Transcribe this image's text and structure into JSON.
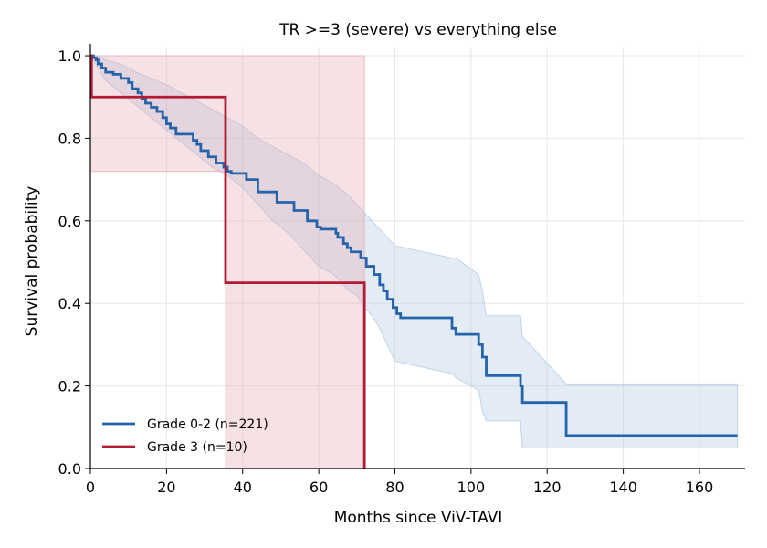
{
  "chart_data": {
    "type": "line",
    "subtype": "kaplan-meier",
    "title": "TR >=3 (severe) vs everything else",
    "xlabel": "Months since ViV-TAVI",
    "ylabel": "Survival probability",
    "xlim": [
      0,
      172
    ],
    "ylim": [
      0,
      1.02
    ],
    "xticks": [
      0,
      20,
      40,
      60,
      80,
      100,
      120,
      140,
      160
    ],
    "yticks": [
      0.0,
      0.2,
      0.4,
      0.6,
      0.8,
      1.0
    ],
    "xtick_labels": [
      "0",
      "20",
      "40",
      "60",
      "80",
      "100",
      "120",
      "140",
      "160"
    ],
    "ytick_labels": [
      "0.0",
      "0.2",
      "0.4",
      "0.6",
      "0.8",
      "1.0"
    ],
    "grid": true,
    "legend_position": "lower-left",
    "series": [
      {
        "name": "Grade 0-2 (n=221)",
        "color": "#2563ab",
        "band_color": "#aac4e2",
        "steps": [
          [
            0,
            1.0
          ],
          [
            0.8,
            0.995
          ],
          [
            1.5,
            0.99
          ],
          [
            2.0,
            0.98
          ],
          [
            3.0,
            0.97
          ],
          [
            4.0,
            0.96
          ],
          [
            6.0,
            0.955
          ],
          [
            8.0,
            0.945
          ],
          [
            10.0,
            0.935
          ],
          [
            11.0,
            0.92
          ],
          [
            12.5,
            0.91
          ],
          [
            13.5,
            0.895
          ],
          [
            14.5,
            0.885
          ],
          [
            16.0,
            0.875
          ],
          [
            17.5,
            0.865
          ],
          [
            19.0,
            0.85
          ],
          [
            20.0,
            0.835
          ],
          [
            21.0,
            0.825
          ],
          [
            22.5,
            0.81
          ],
          [
            27.0,
            0.795
          ],
          [
            28.0,
            0.785
          ],
          [
            29.0,
            0.77
          ],
          [
            31.0,
            0.755
          ],
          [
            33.0,
            0.74
          ],
          [
            35.0,
            0.73
          ],
          [
            36.0,
            0.72
          ],
          [
            37.0,
            0.715
          ],
          [
            41.0,
            0.7
          ],
          [
            44.0,
            0.67
          ],
          [
            49.0,
            0.645
          ],
          [
            53.5,
            0.625
          ],
          [
            57.0,
            0.6
          ],
          [
            59.5,
            0.585
          ],
          [
            60.5,
            0.58
          ],
          [
            64.5,
            0.57
          ],
          [
            65.0,
            0.56
          ],
          [
            66.5,
            0.545
          ],
          [
            67.5,
            0.535
          ],
          [
            68.5,
            0.525
          ],
          [
            71.0,
            0.51
          ],
          [
            72.5,
            0.49
          ],
          [
            74.5,
            0.47
          ],
          [
            76.0,
            0.445
          ],
          [
            77.0,
            0.43
          ],
          [
            78.0,
            0.41
          ],
          [
            79.5,
            0.39
          ],
          [
            80.5,
            0.375
          ],
          [
            81.5,
            0.365
          ],
          [
            95.0,
            0.34
          ],
          [
            96.0,
            0.325
          ],
          [
            102.0,
            0.3
          ],
          [
            103.0,
            0.27
          ],
          [
            104.0,
            0.225
          ],
          [
            113.0,
            0.2
          ],
          [
            113.5,
            0.16
          ],
          [
            125.0,
            0.08
          ],
          [
            170.0,
            0.08
          ]
        ],
        "upper": [
          [
            0,
            1.0
          ],
          [
            2,
            1.0
          ],
          [
            4,
            0.99
          ],
          [
            8,
            0.98
          ],
          [
            12,
            0.96
          ],
          [
            16,
            0.945
          ],
          [
            20,
            0.93
          ],
          [
            24,
            0.91
          ],
          [
            28,
            0.89
          ],
          [
            32,
            0.87
          ],
          [
            36,
            0.85
          ],
          [
            40,
            0.83
          ],
          [
            44,
            0.8
          ],
          [
            48,
            0.78
          ],
          [
            52,
            0.76
          ],
          [
            56,
            0.74
          ],
          [
            60,
            0.71
          ],
          [
            64,
            0.69
          ],
          [
            68,
            0.66
          ],
          [
            70,
            0.64
          ],
          [
            72,
            0.62
          ],
          [
            74,
            0.6
          ],
          [
            76,
            0.58
          ],
          [
            78,
            0.56
          ],
          [
            80,
            0.54
          ],
          [
            95,
            0.51
          ],
          [
            96,
            0.51
          ],
          [
            102,
            0.47
          ],
          [
            103,
            0.43
          ],
          [
            104,
            0.37
          ],
          [
            113,
            0.37
          ],
          [
            113.5,
            0.32
          ],
          [
            125,
            0.205
          ],
          [
            170,
            0.205
          ]
        ],
        "lower": [
          [
            0,
            1.0
          ],
          [
            2,
            0.97
          ],
          [
            4,
            0.94
          ],
          [
            8,
            0.91
          ],
          [
            12,
            0.88
          ],
          [
            16,
            0.85
          ],
          [
            20,
            0.82
          ],
          [
            24,
            0.79
          ],
          [
            28,
            0.76
          ],
          [
            32,
            0.73
          ],
          [
            36,
            0.71
          ],
          [
            40,
            0.68
          ],
          [
            44,
            0.64
          ],
          [
            48,
            0.6
          ],
          [
            52,
            0.57
          ],
          [
            56,
            0.53
          ],
          [
            60,
            0.49
          ],
          [
            64,
            0.47
          ],
          [
            68,
            0.43
          ],
          [
            70,
            0.42
          ],
          [
            72,
            0.39
          ],
          [
            74,
            0.37
          ],
          [
            76,
            0.34
          ],
          [
            78,
            0.3
          ],
          [
            80,
            0.26
          ],
          [
            95,
            0.23
          ],
          [
            96,
            0.22
          ],
          [
            102,
            0.19
          ],
          [
            103,
            0.14
          ],
          [
            104,
            0.115
          ],
          [
            113,
            0.115
          ],
          [
            113.5,
            0.05
          ],
          [
            125,
            0.05
          ],
          [
            170,
            0.05
          ]
        ]
      },
      {
        "name": "Grade 3 (n=10)",
        "color": "#b31b34",
        "band_color": "#e6a8b3",
        "steps": [
          [
            0,
            1.0
          ],
          [
            0.3,
            0.9
          ],
          [
            35.5,
            0.45
          ],
          [
            72.0,
            0.0
          ]
        ],
        "upper": [
          [
            0,
            1.0
          ],
          [
            72,
            1.0
          ]
        ],
        "lower": [
          [
            0,
            0.72
          ],
          [
            35.5,
            0.72
          ],
          [
            35.5,
            0.0
          ],
          [
            72,
            0.0
          ]
        ]
      }
    ]
  }
}
